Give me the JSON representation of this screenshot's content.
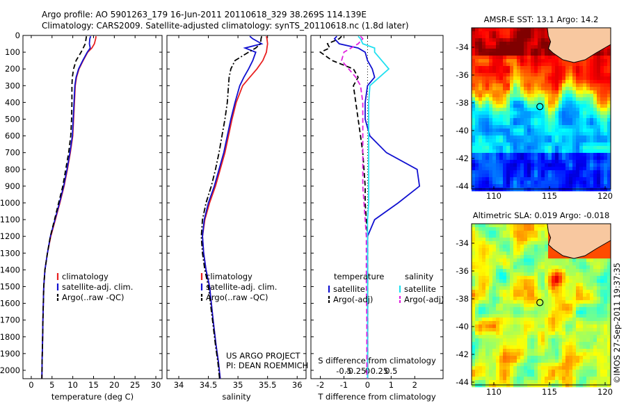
{
  "header": {
    "line1": "Argo profile: AO 5901263_179 16-Jun-2011 20110618_329 38.269S 114.139E",
    "line2": "Climatology: CARS2009. Satellite-adjusted climatology: synTS_20110618.nc (1.8d later)"
  },
  "depth_ticks": [
    0,
    100,
    200,
    300,
    400,
    500,
    600,
    700,
    800,
    900,
    1000,
    1100,
    1200,
    1300,
    1400,
    1500,
    1600,
    1700,
    1800,
    1900,
    2000
  ],
  "colors": {
    "climatology": "#e82020",
    "satellite": "#1010d0",
    "argo": "#000000",
    "sal_sat": "#20e0f0",
    "sal_argo": "#e020e0"
  },
  "chart_data": [
    {
      "type": "line",
      "id": "temperature",
      "xlabel": "temperature (deg C)",
      "xlim": [
        -2,
        31.5
      ],
      "ylim": [
        2050,
        0
      ],
      "xticks": [
        0,
        5,
        10,
        15,
        20,
        25,
        30
      ],
      "legend": {
        "placement": "lower-center",
        "entries": [
          "climatology",
          "satellite-adj. clim.",
          "Argo(..raw -QC)"
        ]
      },
      "series": [
        {
          "name": "climatology",
          "color": "#e82020",
          "dash": "solid",
          "x": [
            15.6,
            15.5,
            15.2,
            14.6,
            13.6,
            12.5,
            11.5,
            10.9,
            10.6,
            10.4,
            10.2,
            10.0,
            9.4,
            8.7,
            7.9,
            6.9,
            5.8,
            4.7,
            3.9,
            3.3,
            3.0,
            2.8,
            2.7,
            2.6,
            2.55
          ],
          "y": [
            5,
            20,
            50,
            75,
            100,
            150,
            200,
            250,
            300,
            400,
            500,
            600,
            700,
            800,
            900,
            1000,
            1100,
            1200,
            1300,
            1400,
            1500,
            1700,
            1850,
            1950,
            2050
          ]
        },
        {
          "name": "satellite-adj. clim.",
          "color": "#1010d0",
          "dash": "solid",
          "x": [
            14.3,
            14.1,
            14.0,
            14.2,
            13.5,
            12.4,
            11.4,
            10.8,
            10.5,
            10.3,
            10.1,
            9.9,
            9.3,
            8.6,
            7.8,
            6.8,
            5.7,
            4.6,
            3.9,
            3.3,
            3.0,
            2.8,
            2.7,
            2.6,
            2.55
          ],
          "y": [
            5,
            20,
            50,
            75,
            100,
            150,
            200,
            250,
            300,
            400,
            500,
            600,
            700,
            800,
            900,
            1000,
            1100,
            1200,
            1300,
            1400,
            1500,
            1700,
            1850,
            1950,
            2050
          ]
        },
        {
          "name": "Argo(..raw -QC)",
          "color": "#000000",
          "dash": "dash",
          "x": [
            13.3,
            13.2,
            13.0,
            12.5,
            12.0,
            10.8,
            10.2,
            9.9,
            9.8,
            9.8,
            9.7,
            9.5,
            9.0,
            8.3,
            7.6,
            6.6,
            5.6,
            4.6,
            3.9,
            3.3,
            3.0,
            2.8,
            2.7,
            2.6,
            2.55
          ],
          "y": [
            5,
            20,
            50,
            75,
            100,
            150,
            200,
            250,
            300,
            400,
            500,
            600,
            700,
            800,
            900,
            1000,
            1100,
            1200,
            1300,
            1400,
            1500,
            1700,
            1850,
            1950,
            2050
          ]
        }
      ]
    },
    {
      "type": "line",
      "id": "salinity",
      "xlabel": "salinity",
      "xlim": [
        33.8,
        36.15
      ],
      "ylim": [
        2050,
        0
      ],
      "xticks": [
        34,
        34.5,
        35,
        35.5,
        36
      ],
      "xtick_labels": [
        "34",
        "34.5",
        "35",
        "35.5",
        "36"
      ],
      "legend": {
        "placement": "lower-center",
        "entries": [
          "climatology",
          "satellite-adj. clim.",
          "Argo(..raw -QC)"
        ]
      },
      "annotation": [
        "US ARGO PROJECT",
        "PI: DEAN ROEMMICH"
      ],
      "series": [
        {
          "name": "climatology",
          "color": "#e82020",
          "dash": "solid",
          "x": [
            35.48,
            35.49,
            35.5,
            35.49,
            35.48,
            35.42,
            35.32,
            35.2,
            35.08,
            34.97,
            34.9,
            34.84,
            34.78,
            34.7,
            34.62,
            34.52,
            34.44,
            34.4,
            34.42,
            34.46,
            34.52,
            34.58,
            34.63,
            34.67,
            34.7
          ],
          "y": [
            5,
            20,
            50,
            75,
            100,
            150,
            200,
            250,
            300,
            400,
            500,
            600,
            700,
            800,
            900,
            1000,
            1100,
            1200,
            1300,
            1400,
            1500,
            1700,
            1850,
            1950,
            2050
          ]
        },
        {
          "name": "satellite-adj. clim.",
          "color": "#1010d0",
          "dash": "solid",
          "x": [
            35.2,
            35.25,
            35.4,
            35.12,
            35.3,
            35.25,
            35.18,
            35.1,
            35.03,
            34.95,
            34.88,
            34.82,
            34.76,
            34.68,
            34.6,
            34.5,
            34.43,
            34.4,
            34.42,
            34.46,
            34.52,
            34.58,
            34.63,
            34.67,
            34.7
          ],
          "y": [
            5,
            20,
            50,
            75,
            100,
            150,
            200,
            250,
            300,
            400,
            500,
            600,
            700,
            800,
            900,
            1000,
            1100,
            1200,
            1300,
            1400,
            1500,
            1700,
            1850,
            1950,
            2050
          ]
        },
        {
          "name": "Argo(..raw -QC)",
          "color": "#000000",
          "dash": "dashdot",
          "x": [
            35.4,
            35.39,
            35.38,
            35.3,
            35.18,
            34.95,
            34.88,
            34.85,
            34.84,
            34.82,
            34.78,
            34.73,
            34.68,
            34.62,
            34.55,
            34.46,
            34.4,
            34.38,
            34.4,
            34.44,
            34.5,
            34.57,
            34.62,
            34.66,
            34.69
          ],
          "y": [
            5,
            20,
            50,
            75,
            100,
            150,
            200,
            250,
            300,
            400,
            500,
            600,
            700,
            800,
            900,
            1000,
            1100,
            1200,
            1300,
            1400,
            1500,
            1700,
            1850,
            1950,
            2050
          ]
        }
      ]
    },
    {
      "type": "line",
      "id": "difference",
      "xlabel": "T difference from climatology",
      "xlabel_top": "S difference from climatology",
      "xlim": [
        -2.4,
        3.2
      ],
      "ylim": [
        2050,
        0
      ],
      "xticks": [
        -2,
        -1,
        0,
        1,
        2
      ],
      "xtick_labels": [
        "-2",
        "-1",
        "0",
        "1",
        "2"
      ],
      "sticks": [
        -1,
        -0.5,
        0,
        0.5,
        1
      ],
      "stick_labels": [
        "-0.5",
        "-0.25",
        "0",
        "0.25",
        "0.5"
      ],
      "legend": {
        "placement": "lower-center",
        "headers": [
          "temperature",
          "salinity"
        ],
        "entries": [
          "satellite",
          "Argo(-adj)",
          "satellite",
          "Argo(-adj)"
        ]
      },
      "series": [
        {
          "name": "temperature satellite",
          "color": "#1010d0",
          "dash": "solid",
          "x": [
            -1.3,
            -1.4,
            -1.2,
            -0.4,
            -0.1,
            0.0,
            0.2,
            0.3,
            0.0,
            -0.1,
            -0.1,
            0.1,
            0.8,
            2.1,
            2.2,
            1.3,
            0.3,
            0.0,
            0.0,
            0.0,
            0.0,
            0.0,
            0.0,
            0.0,
            0.0
          ],
          "y": [
            5,
            20,
            50,
            75,
            100,
            150,
            200,
            250,
            300,
            400,
            500,
            600,
            700,
            800,
            900,
            1000,
            1100,
            1200,
            1300,
            1400,
            1500,
            1700,
            1850,
            1950,
            2050
          ]
        },
        {
          "name": "temperature Argo(-adj)",
          "color": "#000000",
          "dash": "dash",
          "x": [
            -1.1,
            -1.2,
            -1.7,
            -1.6,
            -2.0,
            -1.5,
            -0.6,
            -0.4,
            -0.6,
            -0.5,
            -0.4,
            -0.3,
            -0.2,
            -0.15,
            -0.1,
            -0.1,
            -0.05,
            0.0,
            0.0,
            0.0,
            0.0,
            0.0,
            0.0,
            0.0,
            0.0
          ],
          "y": [
            5,
            20,
            50,
            75,
            100,
            150,
            200,
            250,
            300,
            400,
            500,
            600,
            700,
            800,
            900,
            1000,
            1100,
            1200,
            1300,
            1400,
            1500,
            1700,
            1850,
            1950,
            2050
          ]
        },
        {
          "name": "salinity satellite",
          "color": "#20e0f0",
          "dash": "solid",
          "x": [
            -0.4,
            -0.3,
            -0.2,
            0.3,
            0.3,
            0.6,
            0.9,
            0.5,
            0.1,
            0.05,
            0.05,
            0.05,
            0.05,
            0.05,
            0.05,
            0.05,
            0.0,
            0.0,
            0.0,
            0.0,
            0.0,
            0.0,
            0.0,
            0.0,
            0.0
          ],
          "y": [
            5,
            20,
            50,
            75,
            100,
            150,
            200,
            250,
            300,
            400,
            500,
            600,
            700,
            800,
            900,
            1000,
            1100,
            1200,
            1300,
            1400,
            1500,
            1700,
            1850,
            1950,
            2050
          ]
        },
        {
          "name": "salinity Argo(-adj)",
          "color": "#e020e0",
          "dash": "dash",
          "x": [
            -0.3,
            -0.2,
            -0.4,
            -0.7,
            -1.0,
            -1.1,
            -0.8,
            -0.5,
            -0.3,
            -0.2,
            -0.2,
            -0.2,
            -0.2,
            -0.2,
            -0.2,
            -0.15,
            -0.1,
            -0.05,
            -0.05,
            -0.05,
            -0.05,
            -0.03,
            -0.03,
            -0.03,
            -0.03
          ],
          "y": [
            5,
            20,
            50,
            75,
            100,
            150,
            200,
            250,
            300,
            400,
            500,
            600,
            700,
            800,
            900,
            1000,
            1100,
            1200,
            1300,
            1400,
            1500,
            1700,
            1850,
            1950,
            2050
          ]
        }
      ]
    },
    {
      "type": "heatmap",
      "id": "sst-map",
      "title": "AMSR-E SST: 13.1 Argo: 14.2",
      "xlim": [
        108,
        120.5
      ],
      "ylim": [
        -44.2,
        -32.6
      ],
      "xticks": [
        110,
        115,
        120
      ],
      "yticks": [
        -34,
        -36,
        -38,
        -40,
        -42,
        -44
      ],
      "marker": {
        "lon": 114.139,
        "lat": -38.269
      },
      "colormap": "jet"
    },
    {
      "type": "heatmap",
      "id": "sla-map",
      "title": "Altimetric SLA: 0.019 Argo: -0.018",
      "xlim": [
        108,
        120.5
      ],
      "ylim": [
        -44.2,
        -32.6
      ],
      "xticks": [
        110,
        115,
        120
      ],
      "yticks": [
        -34,
        -36,
        -38,
        -40,
        -42,
        -44
      ],
      "marker": {
        "lon": 114.139,
        "lat": -38.269
      },
      "colormap": "jet"
    }
  ],
  "legend_labels": {
    "climatology": "climatology",
    "satellite_adj": "satellite-adj. clim.",
    "argo_raw": "Argo(..raw -QC)",
    "temperature": "temperature",
    "salinity": "salinity",
    "satellite": "satellite",
    "argo_adj": "Argo(-adj)"
  },
  "footer": "©IMOS 27-Sep-2011 19:37:35"
}
